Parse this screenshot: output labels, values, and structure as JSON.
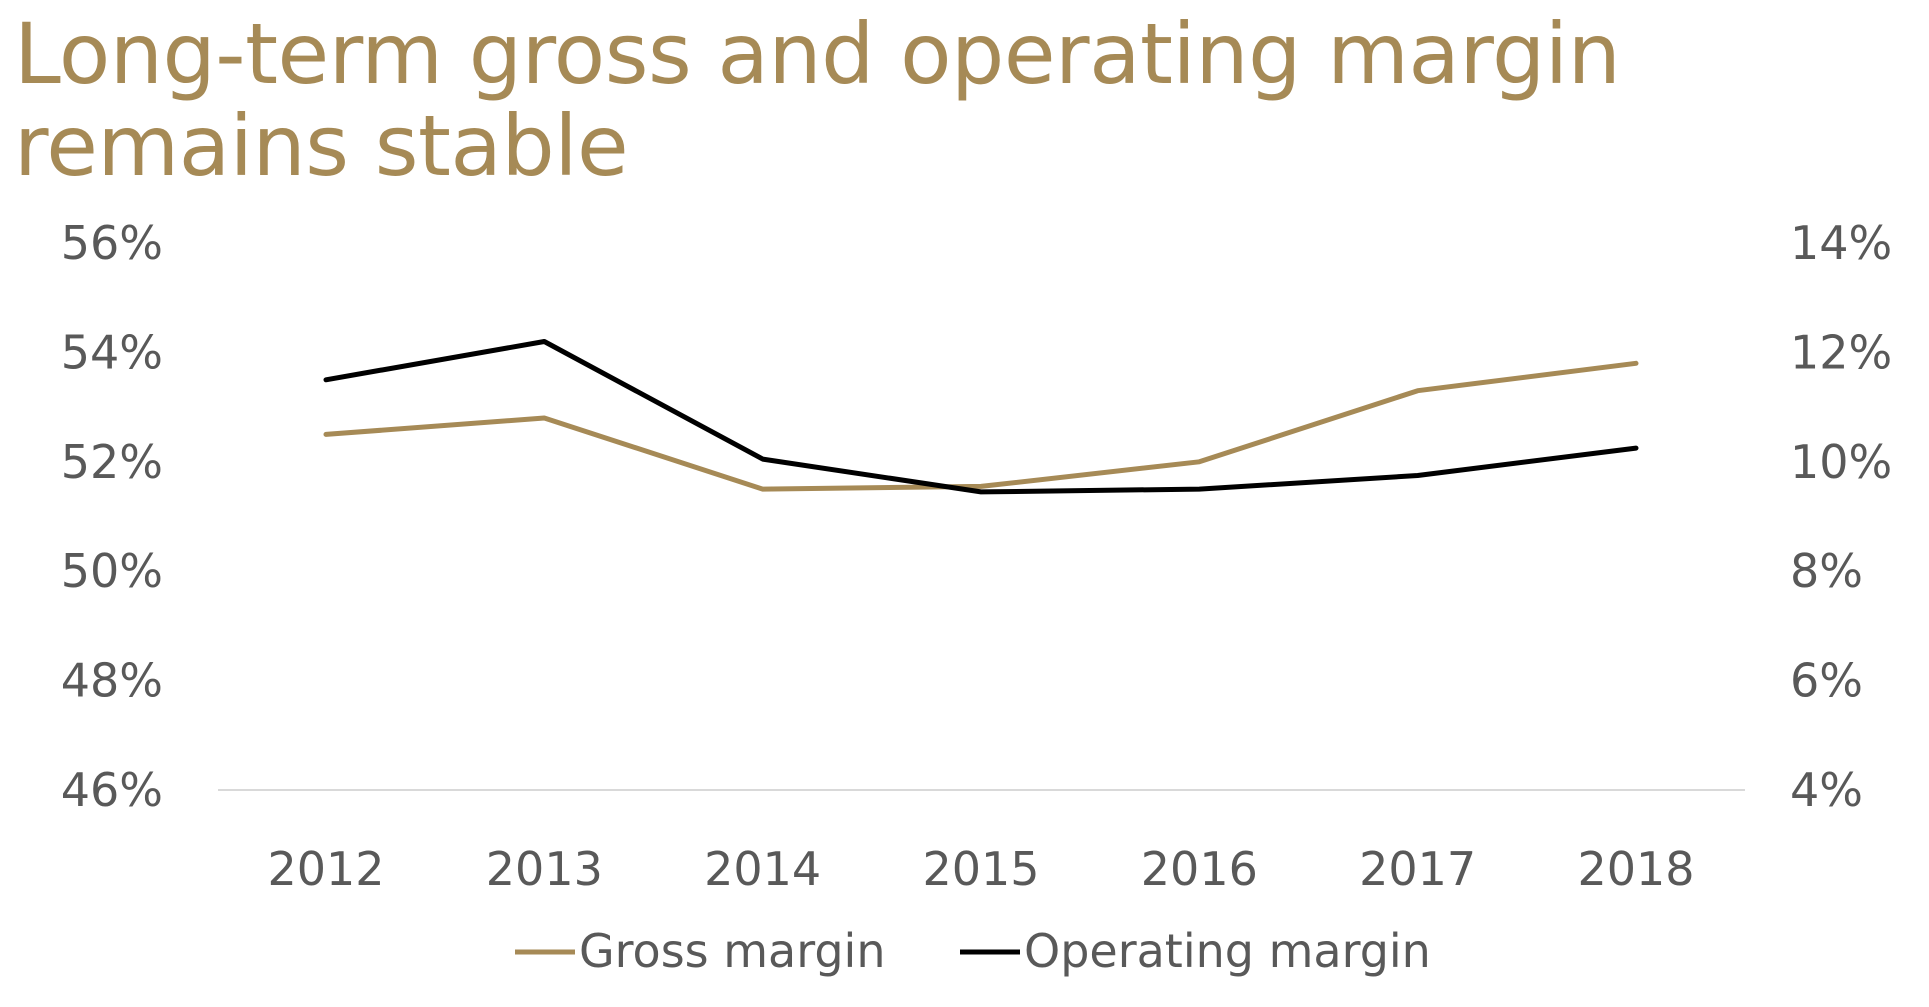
{
  "chart_data": {
    "type": "line",
    "title": "Long-term gross and operating margin remains stable",
    "categories": [
      "2012",
      "2013",
      "2014",
      "2015",
      "2016",
      "2017",
      "2018"
    ],
    "y_left": {
      "ticks": [
        "56%",
        "54%",
        "52%",
        "50%",
        "48%",
        "46%"
      ],
      "tick_values": [
        56,
        54,
        52,
        50,
        48,
        46
      ],
      "ylim": [
        46,
        56
      ]
    },
    "y_right": {
      "ticks": [
        "14%",
        "12%",
        "10%",
        "8%",
        "6%",
        "4%"
      ],
      "tick_values": [
        14,
        12,
        10,
        8,
        6,
        4
      ],
      "ylim": [
        4,
        14
      ]
    },
    "series": [
      {
        "name": "Gross margin",
        "axis": "left",
        "color": "#a68a56",
        "values": [
          52.5,
          52.8,
          51.5,
          51.55,
          52.0,
          53.3,
          53.8
        ]
      },
      {
        "name": "Operating margin",
        "axis": "right",
        "color": "#000000",
        "values": [
          11.5,
          12.2,
          10.05,
          9.45,
          9.5,
          9.75,
          10.25
        ]
      }
    ],
    "grid": false,
    "legend_position": "bottom"
  }
}
